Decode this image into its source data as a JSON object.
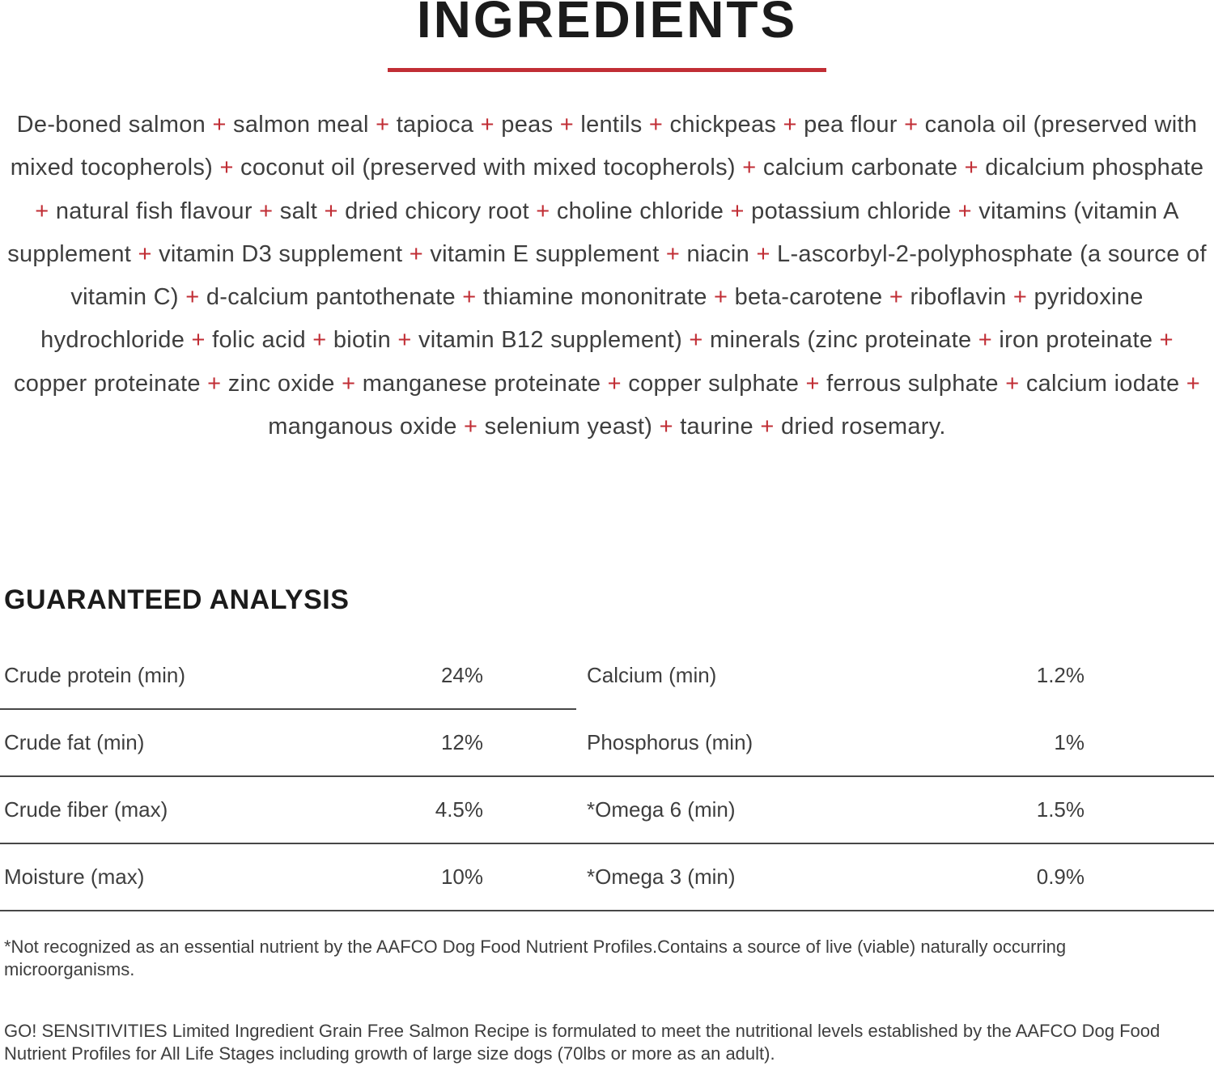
{
  "colors": {
    "accent_red": "#c12e35",
    "heading_text": "#1b1b1b",
    "body_text": "#3e3e3e",
    "divider": "#474747"
  },
  "ingredients": {
    "title": "INGREDIENTS",
    "separator": "+",
    "items": [
      "De-boned salmon",
      "salmon meal",
      "tapioca",
      "peas",
      "lentils",
      "chickpeas",
      "pea flour",
      "canola oil (preserved with mixed tocopherols)",
      "coconut oil (preserved with mixed tocopherols)",
      "calcium carbonate",
      "dicalcium phosphate",
      "natural fish flavour",
      "salt",
      "dried chicory root",
      "choline chloride",
      "potassium chloride",
      "vitamins (vitamin A supplement",
      "vitamin D3 supplement",
      "vitamin E supplement",
      "niacin",
      "L-ascorbyl-2-polyphosphate (a source of vitamin C)",
      "d-calcium pantothenate",
      "thiamine mononitrate",
      "beta-carotene",
      "riboflavin",
      "pyridoxine hydrochloride",
      "folic acid",
      "biotin",
      "vitamin B12 supplement)",
      "minerals (zinc proteinate",
      "iron proteinate",
      "copper proteinate",
      "zinc oxide",
      "manganese proteinate",
      "copper sulphate",
      "ferrous sulphate",
      "calcium iodate",
      "manganous oxide",
      "selenium yeast)",
      "taurine",
      "dried rosemary."
    ]
  },
  "guaranteed_analysis": {
    "heading": "GUARANTEED ANALYSIS",
    "rows": [
      {
        "left_label": "Crude protein (min)",
        "left_value": "24%",
        "right_label": "Calcium (min)",
        "right_value": "1.2%"
      },
      {
        "left_label": "Crude fat (min)",
        "left_value": "12%",
        "right_label": "Phosphorus (min)",
        "right_value": "1%"
      },
      {
        "left_label": "Crude fiber (max)",
        "left_value": "4.5%",
        "right_label": "*Omega 6 (min)",
        "right_value": "1.5%"
      },
      {
        "left_label": "Moisture (max)",
        "left_value": "10%",
        "right_label": "*Omega 3 (min)",
        "right_value": "0.9%"
      }
    ]
  },
  "footnotes": {
    "aafco_note": "*Not recognized as an essential nutrient by the AAFCO Dog Food Nutrient Profiles.Contains a source of live (viable) naturally occurring microorganisms.",
    "formulation_note": "GO! SENSITIVITIES Limited Ingredient Grain Free Salmon Recipe is formulated to meet the nutritional levels established by the AAFCO Dog Food Nutrient Profiles for All Life Stages including growth of large size dogs (70lbs or more as an adult)."
  }
}
